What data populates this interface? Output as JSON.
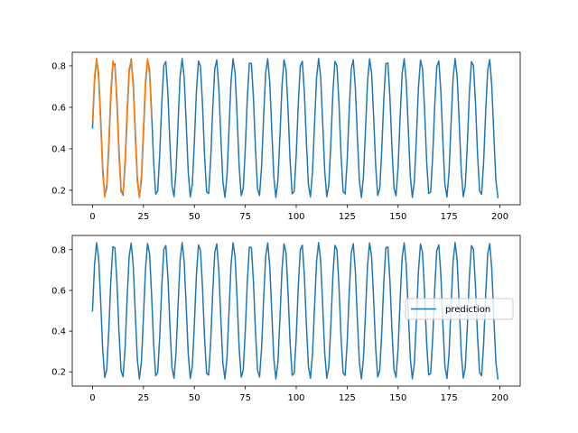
{
  "chart_data": [
    {
      "type": "line",
      "title": "",
      "xlabel": "",
      "ylabel": "",
      "xlim": [
        -9.95,
        209.95
      ],
      "ylim": [
        0.13,
        0.865
      ],
      "x_ticks": [
        0,
        25,
        50,
        75,
        100,
        125,
        150,
        175,
        200
      ],
      "x_tick_labels": [
        "0",
        "25",
        "50",
        "75",
        "100",
        "125",
        "150",
        "175",
        "200"
      ],
      "y_ticks": [
        0.2,
        0.4,
        0.6,
        0.8
      ],
      "y_tick_labels": [
        "0.2",
        "0.4",
        "0.6",
        "0.8"
      ],
      "grid": false,
      "legend": null,
      "series": [
        {
          "color": "#1f77b4",
          "x_start": 0,
          "x_end": 199,
          "step": 1,
          "function": "0.5 + 0.335*sin(0.75*x)"
        },
        {
          "color": "#ff7f0e",
          "x_start": 0,
          "x_end": 29,
          "step": 1,
          "function": "0.5 + 0.335*sin(0.75*x + 0.105)"
        }
      ]
    },
    {
      "type": "line",
      "title": "",
      "xlabel": "",
      "ylabel": "",
      "xlim": [
        -9.95,
        209.95
      ],
      "ylim": [
        0.13,
        0.87
      ],
      "x_ticks": [
        0,
        25,
        50,
        75,
        100,
        125,
        150,
        175,
        200
      ],
      "x_tick_labels": [
        "0",
        "25",
        "50",
        "75",
        "100",
        "125",
        "150",
        "175",
        "200"
      ],
      "y_ticks": [
        0.2,
        0.4,
        0.6,
        0.8
      ],
      "y_tick_labels": [
        "0.2",
        "0.4",
        "0.6",
        "0.8"
      ],
      "grid": false,
      "legend": "center-right",
      "series": [
        {
          "name": "prediction",
          "color": "#1f77b4",
          "x_start": 0,
          "x_end": 199,
          "step": 1,
          "function": "0.5 + 0.335*sin(0.75*x)"
        }
      ]
    }
  ]
}
